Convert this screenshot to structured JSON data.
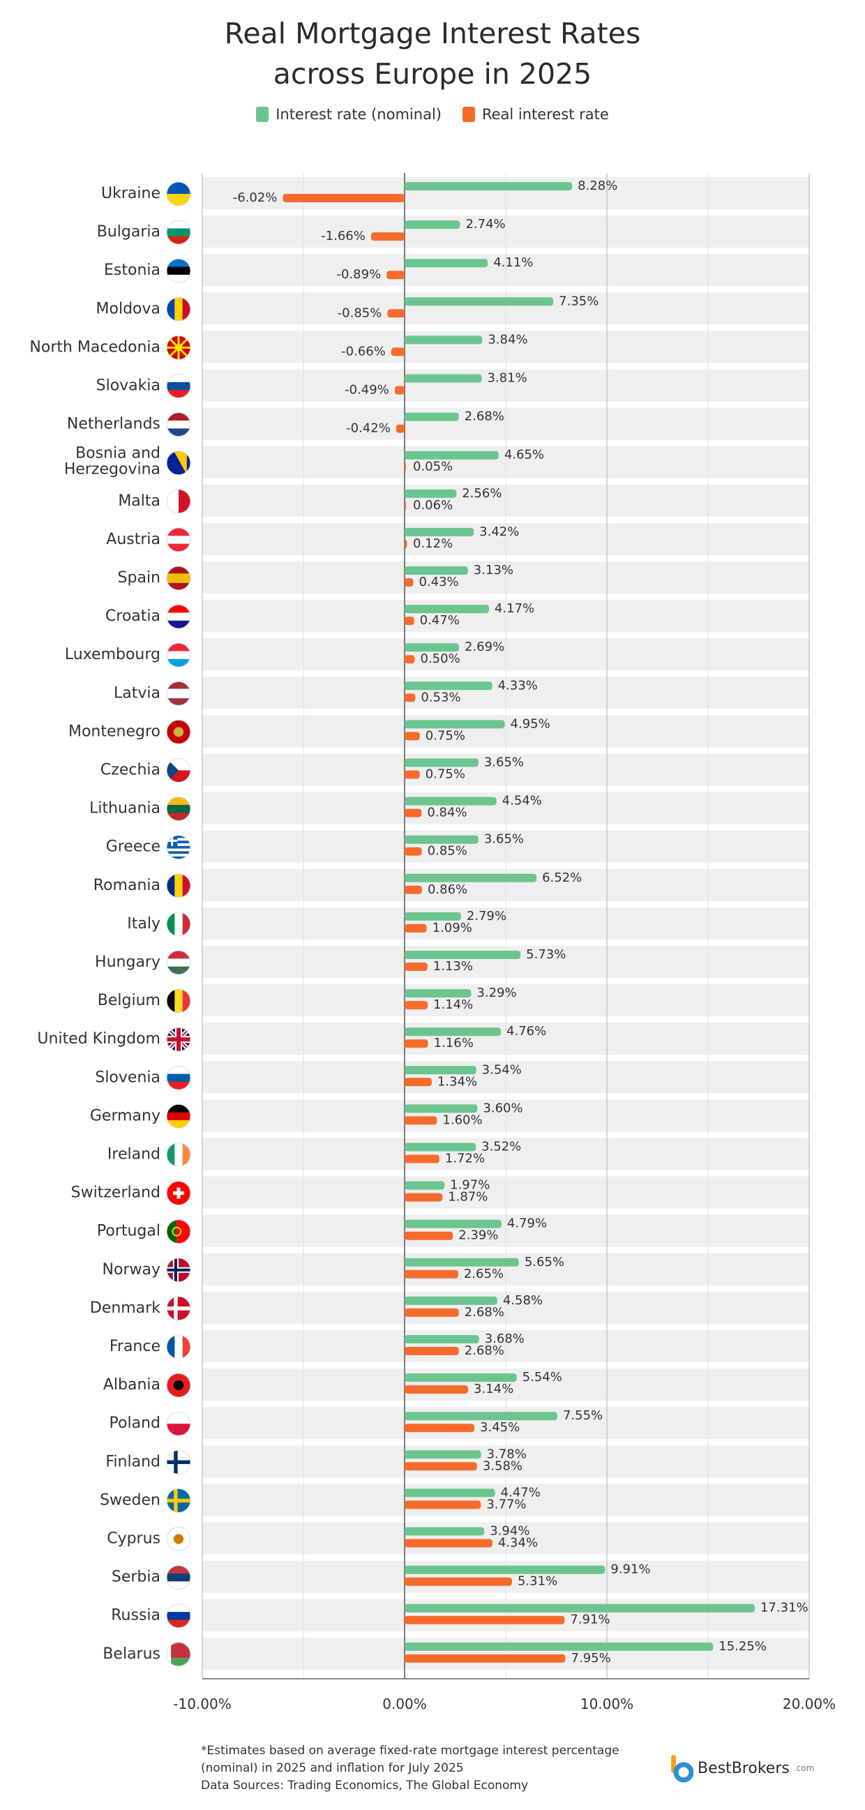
{
  "title_line1": "Real Mortgage Interest Rates",
  "title_line2": "across Europe in 2025",
  "legend": {
    "nominal": "Interest rate (nominal)",
    "real": "Real interest rate"
  },
  "colors": {
    "nominal": "#6cc58f",
    "real": "#f76b2a",
    "row_bg": "#efefef",
    "grid": "#bdbdbd",
    "zero_line": "#555555"
  },
  "footnote": {
    "line1": "*Estimates based on average fixed-rate mortgage interest percentage",
    "line2": "(nominal) in 2025 and inflation for July 2025",
    "line3": "Data Sources: Trading Economics, The Global Economy"
  },
  "brand": {
    "name": "BestBrokers",
    "tld": ".com",
    "icon": "bestbrokers-logo-icon"
  },
  "chart_data": {
    "type": "bar",
    "orientation": "horizontal",
    "title": "Real Mortgage Interest Rates across Europe in 2025",
    "xlim": [
      -10,
      20
    ],
    "x_ticks": [
      -10,
      -5,
      0,
      5,
      10,
      15,
      20
    ],
    "x_tick_labels": [
      "-10.00%",
      "",
      "0.00%",
      "",
      "10.00%",
      "",
      "20.00%"
    ],
    "categories": [
      "Ukraine",
      "Bulgaria",
      "Estonia",
      "Moldova",
      "North Macedonia",
      "Slovakia",
      "Netherlands",
      "Bosnia and Herzegovina",
      "Malta",
      "Austria",
      "Spain",
      "Croatia",
      "Luxembourg",
      "Latvia",
      "Montenegro",
      "Czechia",
      "Lithuania",
      "Greece",
      "Romania",
      "Italy",
      "Hungary",
      "Belgium",
      "United Kingdom",
      "Slovenia",
      "Germany",
      "Ireland",
      "Switzerland",
      "Portugal",
      "Norway",
      "Denmark",
      "France",
      "Albania",
      "Poland",
      "Finland",
      "Sweden",
      "Cyprus",
      "Serbia",
      "Russia",
      "Belarus"
    ],
    "series": [
      {
        "name": "Interest rate (nominal)",
        "values": [
          8.28,
          2.74,
          4.11,
          7.35,
          3.84,
          3.81,
          2.68,
          4.65,
          2.56,
          3.42,
          3.13,
          4.17,
          2.69,
          4.33,
          4.95,
          3.65,
          4.54,
          3.65,
          6.52,
          2.79,
          5.73,
          3.29,
          4.76,
          3.54,
          3.6,
          3.52,
          1.97,
          4.79,
          5.65,
          4.58,
          3.68,
          5.54,
          7.55,
          3.78,
          4.47,
          3.94,
          9.91,
          17.31,
          15.25
        ]
      },
      {
        "name": "Real interest rate",
        "values": [
          -6.02,
          -1.66,
          -0.89,
          -0.85,
          -0.66,
          -0.49,
          -0.42,
          0.05,
          0.06,
          0.12,
          0.43,
          0.47,
          0.5,
          0.53,
          0.75,
          0.75,
          0.84,
          0.85,
          0.86,
          1.09,
          1.13,
          1.14,
          1.16,
          1.34,
          1.6,
          1.72,
          1.87,
          2.39,
          2.65,
          2.68,
          2.68,
          3.14,
          3.45,
          3.58,
          3.77,
          4.34,
          5.31,
          7.91,
          7.95
        ]
      }
    ],
    "value_labels": {
      "nominal": [
        "8.28%",
        "2.74%",
        "4.11%",
        "7.35%",
        "3.84%",
        "3.81%",
        "2.68%",
        "4.65%",
        "2.56%",
        "3.42%",
        "3.13%",
        "4.17%",
        "2.69%",
        "4.33%",
        "4.95%",
        "3.65%",
        "4.54%",
        "3.65%",
        "6.52%",
        "2.79%",
        "5.73%",
        "3.29%",
        "4.76%",
        "3.54%",
        "3.60%",
        "3.52%",
        "1.97%",
        "4.79%",
        "5.65%",
        "4.58%",
        "3.68%",
        "5.54%",
        "7.55%",
        "3.78%",
        "4.47%",
        "3.94%",
        "9.91%",
        "17.31%",
        "15.25%"
      ],
      "real": [
        "-6.02%",
        "-1.66%",
        "-0.89%",
        "-0.85%",
        "-0.66%",
        "-0.49%",
        "-0.42%",
        "0.05%",
        "0.06%",
        "0.12%",
        "0.43%",
        "0.47%",
        "0.50%",
        "0.53%",
        "0.75%",
        "0.75%",
        "0.84%",
        "0.85%",
        "0.86%",
        "1.09%",
        "1.13%",
        "1.14%",
        "1.16%",
        "1.34%",
        "1.60%",
        "1.72%",
        "1.87%",
        "2.39%",
        "2.65%",
        "2.68%",
        "2.68%",
        "3.14%",
        "3.45%",
        "3.58%",
        "3.77%",
        "4.34%",
        "5.31%",
        "7.91%",
        "7.95%"
      ]
    },
    "label_lines": {
      "Bosnia and Herzegovina": [
        "Bosnia and",
        "Herzegovina"
      ]
    },
    "flags": [
      {
        "country": "Ukraine",
        "kind": "h",
        "colors": [
          "#0057b7",
          "#ffd700"
        ]
      },
      {
        "country": "Bulgaria",
        "kind": "h",
        "colors": [
          "#ffffff",
          "#00966e",
          "#d62612"
        ]
      },
      {
        "country": "Estonia",
        "kind": "h",
        "colors": [
          "#0072ce",
          "#000000",
          "#ffffff"
        ]
      },
      {
        "country": "Moldova",
        "kind": "v",
        "colors": [
          "#0046ae",
          "#ffd200",
          "#cc092f"
        ]
      },
      {
        "country": "North Macedonia",
        "kind": "sun",
        "colors": [
          "#d20000",
          "#ffe600"
        ]
      },
      {
        "country": "Slovakia",
        "kind": "h",
        "colors": [
          "#ffffff",
          "#0b4ea2",
          "#ee1c25"
        ]
      },
      {
        "country": "Netherlands",
        "kind": "h",
        "colors": [
          "#ae1c28",
          "#ffffff",
          "#21468b"
        ]
      },
      {
        "country": "Bosnia and Herzegovina",
        "kind": "bih",
        "colors": [
          "#002395",
          "#fecb00"
        ]
      },
      {
        "country": "Malta",
        "kind": "v",
        "colors": [
          "#ffffff",
          "#cf142b"
        ]
      },
      {
        "country": "Austria",
        "kind": "h",
        "colors": [
          "#ed2939",
          "#ffffff",
          "#ed2939"
        ]
      },
      {
        "country": "Spain",
        "kind": "h3",
        "colors": [
          "#aa151b",
          "#f1bf00",
          "#aa151b"
        ]
      },
      {
        "country": "Croatia",
        "kind": "h",
        "colors": [
          "#ff0000",
          "#ffffff",
          "#171796"
        ]
      },
      {
        "country": "Luxembourg",
        "kind": "h",
        "colors": [
          "#ed2939",
          "#ffffff",
          "#00a1de"
        ]
      },
      {
        "country": "Latvia",
        "kind": "h3",
        "colors": [
          "#9e3039",
          "#ffffff",
          "#9e3039"
        ]
      },
      {
        "country": "Montenegro",
        "kind": "disc",
        "colors": [
          "#c40308",
          "#d3ae3b"
        ]
      },
      {
        "country": "Czechia",
        "kind": "cz",
        "colors": [
          "#ffffff",
          "#d7141a",
          "#11457e"
        ]
      },
      {
        "country": "Lithuania",
        "kind": "h",
        "colors": [
          "#fdb913",
          "#006a44",
          "#c1272d"
        ]
      },
      {
        "country": "Greece",
        "kind": "gr",
        "colors": [
          "#0d5eaf",
          "#ffffff"
        ]
      },
      {
        "country": "Romania",
        "kind": "v",
        "colors": [
          "#002b7f",
          "#fcd116",
          "#ce1126"
        ]
      },
      {
        "country": "Italy",
        "kind": "v",
        "colors": [
          "#009246",
          "#ffffff",
          "#ce2b37"
        ]
      },
      {
        "country": "Hungary",
        "kind": "h",
        "colors": [
          "#cd2a3e",
          "#ffffff",
          "#436f4d"
        ]
      },
      {
        "country": "Belgium",
        "kind": "v",
        "colors": [
          "#000000",
          "#fdda24",
          "#ef3340"
        ]
      },
      {
        "country": "United Kingdom",
        "kind": "uk",
        "colors": [
          "#012169",
          "#ffffff",
          "#c8102e"
        ]
      },
      {
        "country": "Slovenia",
        "kind": "h",
        "colors": [
          "#ffffff",
          "#005da4",
          "#ed1c24"
        ]
      },
      {
        "country": "Germany",
        "kind": "h",
        "colors": [
          "#000000",
          "#dd0000",
          "#ffce00"
        ]
      },
      {
        "country": "Ireland",
        "kind": "v",
        "colors": [
          "#169b62",
          "#ffffff",
          "#ff883e"
        ]
      },
      {
        "country": "Switzerland",
        "kind": "cross",
        "colors": [
          "#ff0000",
          "#ffffff"
        ]
      },
      {
        "country": "Portugal",
        "kind": "pt",
        "colors": [
          "#006600",
          "#ff0000",
          "#ffcc00"
        ]
      },
      {
        "country": "Norway",
        "kind": "nordic2",
        "colors": [
          "#ba0c2f",
          "#ffffff",
          "#00205b"
        ]
      },
      {
        "country": "Denmark",
        "kind": "nordic",
        "colors": [
          "#c8102e",
          "#ffffff"
        ]
      },
      {
        "country": "France",
        "kind": "v",
        "colors": [
          "#0055a4",
          "#ffffff",
          "#ef4135"
        ]
      },
      {
        "country": "Albania",
        "kind": "disc",
        "colors": [
          "#e41e20",
          "#000000"
        ]
      },
      {
        "country": "Poland",
        "kind": "h",
        "colors": [
          "#ffffff",
          "#dc143c"
        ]
      },
      {
        "country": "Finland",
        "kind": "nordic",
        "colors": [
          "#ffffff",
          "#002f6c"
        ]
      },
      {
        "country": "Sweden",
        "kind": "nordic",
        "colors": [
          "#006aa7",
          "#fecc00"
        ]
      },
      {
        "country": "Cyprus",
        "kind": "disc",
        "colors": [
          "#ffffff",
          "#d57800"
        ]
      },
      {
        "country": "Serbia",
        "kind": "h",
        "colors": [
          "#c6363c",
          "#0c4076",
          "#ffffff"
        ]
      },
      {
        "country": "Russia",
        "kind": "h",
        "colors": [
          "#ffffff",
          "#0039a6",
          "#d52b1e"
        ]
      },
      {
        "country": "Belarus",
        "kind": "by",
        "colors": [
          "#c8313e",
          "#4aa657",
          "#ffffff"
        ]
      }
    ]
  }
}
